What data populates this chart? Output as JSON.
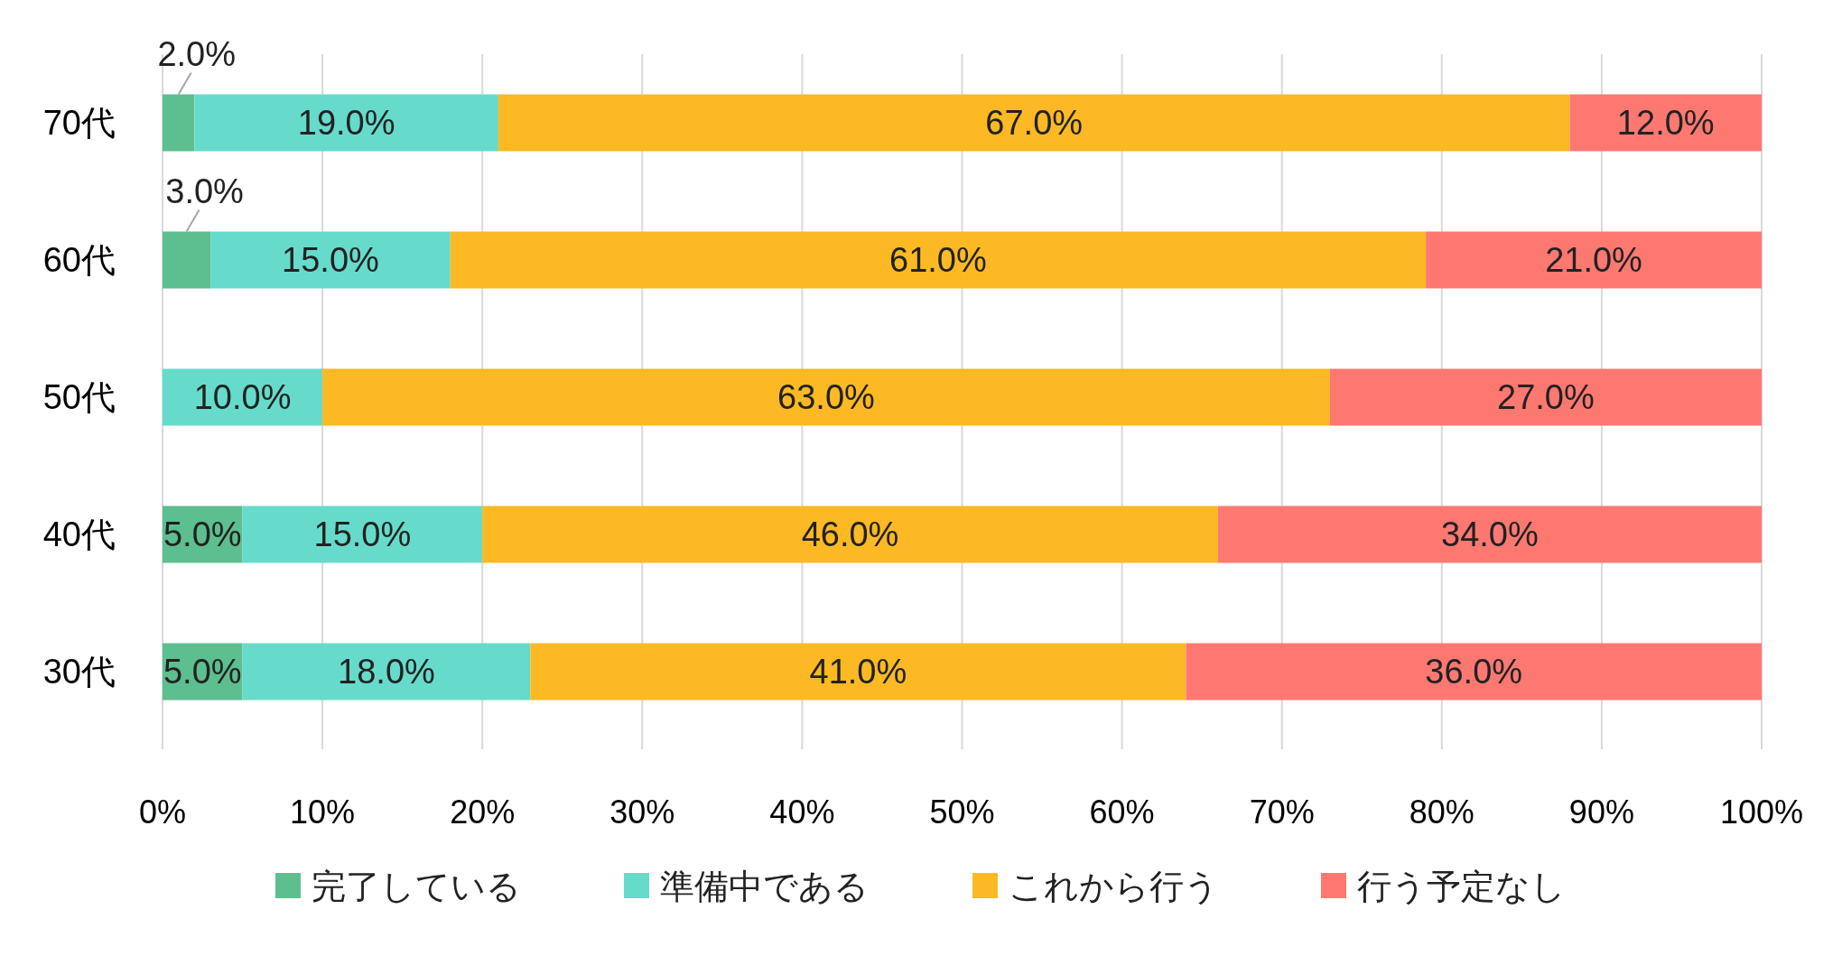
{
  "chart_data": {
    "type": "bar",
    "orientation": "horizontal",
    "stacked": true,
    "categories": [
      "70代",
      "60代",
      "50代",
      "40代",
      "30代"
    ],
    "series": [
      {
        "name": "完了している",
        "color": "#5dbe8f",
        "values": [
          2,
          3,
          0,
          5,
          5
        ],
        "value_labels": [
          "2.0%",
          "3.0%",
          null,
          "5.0%",
          "5.0%"
        ]
      },
      {
        "name": "準備中である",
        "color": "#66dbcb",
        "values": [
          19,
          15,
          10,
          15,
          18
        ],
        "value_labels": [
          "19.0%",
          "15.0%",
          "10.0%",
          "15.0%",
          "18.0%"
        ]
      },
      {
        "name": "これから行う",
        "color": "#fdb924",
        "values": [
          67,
          61,
          63,
          46,
          41
        ],
        "value_labels": [
          "67.0%",
          "61.0%",
          "63.0%",
          "46.0%",
          "41.0%"
        ]
      },
      {
        "name": "行う予定なし",
        "color": "#fe7872",
        "values": [
          12,
          21,
          27,
          34,
          36
        ],
        "value_labels": [
          "12.0%",
          "21.0%",
          "27.0%",
          "34.0%",
          "36.0%"
        ]
      }
    ],
    "xlim": [
      0,
      100
    ],
    "xticks": [
      {
        "value": 0,
        "label": "0%"
      },
      {
        "value": 10,
        "label": "10%"
      },
      {
        "value": 20,
        "label": "20%"
      },
      {
        "value": 30,
        "label": "30%"
      },
      {
        "value": 40,
        "label": "40%"
      },
      {
        "value": 50,
        "label": "50%"
      },
      {
        "value": 60,
        "label": "60%"
      },
      {
        "value": 70,
        "label": "70%"
      },
      {
        "value": 80,
        "label": "80%"
      },
      {
        "value": 90,
        "label": "90%"
      },
      {
        "value": 100,
        "label": "100%"
      }
    ],
    "grid": "x",
    "legend": "bottom"
  }
}
